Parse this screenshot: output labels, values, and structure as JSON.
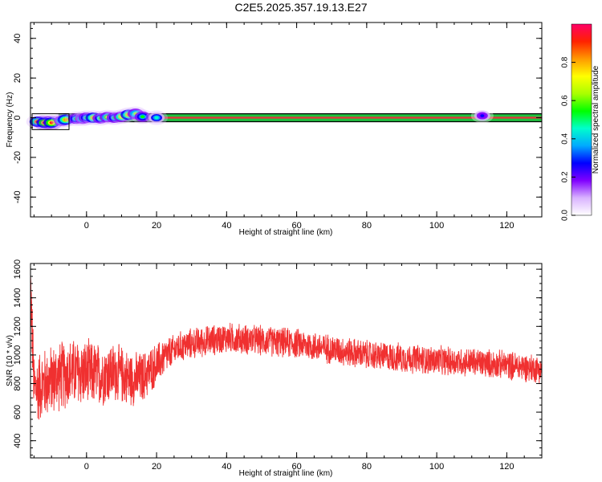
{
  "figure_title": "C2E5.2025.357.19.13.E27",
  "chart_data": [
    {
      "type": "heatmap",
      "name": "spectrogram",
      "xlabel": "Height of straight line (km)",
      "ylabel": "Frequency (Hz)",
      "xlim": [
        -16,
        130
      ],
      "ylim": [
        -50,
        48
      ],
      "xticks": [
        0,
        20,
        40,
        60,
        80,
        100,
        120
      ],
      "xtick_labels": [
        "0",
        "20",
        "40",
        "60",
        "80",
        "100",
        "120"
      ],
      "yticks": [
        -40,
        -20,
        0,
        20,
        40
      ],
      "ytick_labels": [
        "-40",
        "-20",
        "0",
        "20",
        "40"
      ],
      "colorbar": {
        "label": "Normalized spectral amplitude",
        "range": [
          0,
          1
        ],
        "ticks": [
          0.0,
          0.2,
          0.4,
          0.6,
          0.8
        ],
        "tick_labels": [
          "0.0",
          "0.2",
          "0.4",
          "0.6",
          "0.8"
        ],
        "colormap": [
          "#ffffff",
          "#d9b3ff",
          "#8000ff",
          "#0000ff",
          "#00aaff",
          "#00ffcc",
          "#00ff00",
          "#aaff00",
          "#ffff00",
          "#ff9900",
          "#ff2200",
          "#ff0066"
        ]
      },
      "band": {
        "center_hz": 0,
        "half_width_hz": 2
      },
      "blobs": [
        {
          "x": -14,
          "y": -2.0,
          "amp": 0.9
        },
        {
          "x": -12,
          "y": -2.5,
          "amp": 0.95
        },
        {
          "x": -10,
          "y": -2.5,
          "amp": 0.95
        },
        {
          "x": -7,
          "y": -1.5,
          "amp": 0.6
        },
        {
          "x": -6,
          "y": -1.0,
          "amp": 0.85
        },
        {
          "x": -3,
          "y": -0.5,
          "amp": 0.5
        },
        {
          "x": -1,
          "y": -0.5,
          "amp": 0.6
        },
        {
          "x": 0,
          "y": 0.0,
          "amp": 0.5
        },
        {
          "x": 2,
          "y": 0.0,
          "amp": 0.8
        },
        {
          "x": 4,
          "y": -0.3,
          "amp": 0.55
        },
        {
          "x": 6,
          "y": 0.3,
          "amp": 0.7
        },
        {
          "x": 8,
          "y": 0.0,
          "amp": 0.5
        },
        {
          "x": 10,
          "y": 0.5,
          "amp": 0.75
        },
        {
          "x": 12,
          "y": 1.5,
          "amp": 0.85
        },
        {
          "x": 14,
          "y": 2.0,
          "amp": 0.6
        },
        {
          "x": 16,
          "y": 0.5,
          "amp": 0.5
        },
        {
          "x": 20,
          "y": 0.0,
          "amp": 0.45
        },
        {
          "x": 113,
          "y": 1.0,
          "amp": 0.25
        }
      ]
    },
    {
      "type": "line",
      "name": "snr",
      "xlabel": "Height of straight line (km)",
      "ylabel": "SNR (10 * v/v)",
      "xlim": [
        -16,
        130
      ],
      "ylim": [
        280,
        1640
      ],
      "xticks": [
        0,
        20,
        40,
        60,
        80,
        100,
        120
      ],
      "xtick_labels": [
        "0",
        "20",
        "40",
        "60",
        "80",
        "100",
        "120"
      ],
      "yticks": [
        400,
        600,
        800,
        1000,
        1200,
        1400,
        1600
      ],
      "ytick_labels": [
        "400",
        "600",
        "800",
        "1000",
        "1200",
        "1400",
        "1600"
      ],
      "color": "#f03030",
      "trend": {
        "x": [
          -16,
          -15,
          -12,
          -8,
          -4,
          0,
          4,
          8,
          12,
          14,
          16,
          18,
          22,
          26,
          30,
          35,
          40,
          45,
          50,
          60,
          70,
          80,
          90,
          100,
          110,
          120,
          130
        ],
        "y": [
          1500,
          760,
          800,
          850,
          880,
          870,
          860,
          880,
          840,
          830,
          840,
          890,
          980,
          1050,
          1080,
          1100,
          1120,
          1110,
          1100,
          1080,
          1040,
          1000,
          980,
          960,
          950,
          930,
          900
        ]
      },
      "noise_amplitude": [
        {
          "x": -16,
          "amp": 280
        },
        {
          "x": 0,
          "amp": 260
        },
        {
          "x": 16,
          "amp": 200
        },
        {
          "x": 25,
          "amp": 120
        },
        {
          "x": 130,
          "amp": 110
        }
      ]
    }
  ]
}
